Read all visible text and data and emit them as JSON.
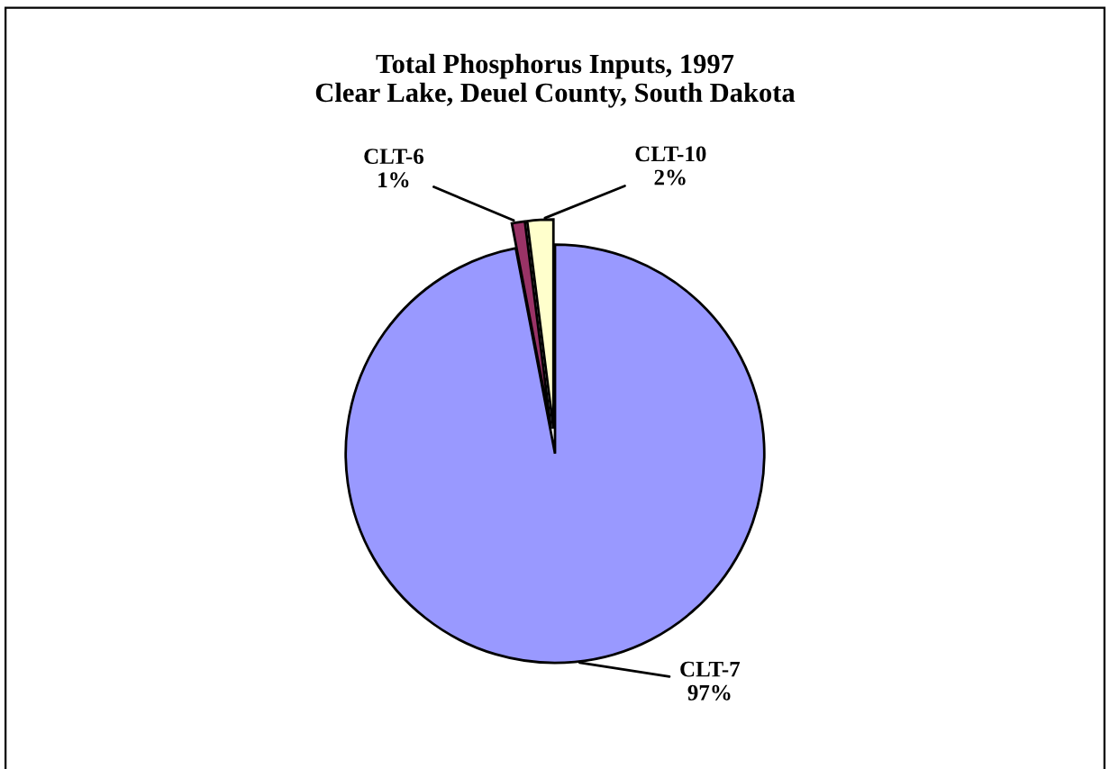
{
  "chart_data": {
    "type": "pie",
    "title": "Total Phosphorus Inputs, 1997\nClear Lake, Deuel County, South Dakota",
    "categories": [
      "CLT-7",
      "CLT-6",
      "CLT-10"
    ],
    "values": [
      97,
      1,
      2
    ],
    "value_labels": [
      "97%",
      "1%",
      "2%"
    ],
    "colors": [
      "#9999ff",
      "#993366",
      "#ffffcc"
    ],
    "legend": false
  }
}
